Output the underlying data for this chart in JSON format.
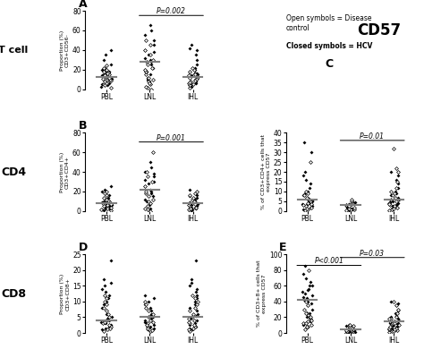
{
  "background_color": "#ffffff",
  "legend_text_1": "Open symbols = Disease\ncontrol",
  "legend_text_2": "Closed symbols = HCV",
  "panel_A": {
    "label": "A",
    "side_label": "T cell",
    "title_p": "P=0.002",
    "ylabel": "Proportion (%)\nCD3+CD56-",
    "xlabel_ticks": [
      "PBL",
      "LNL",
      "IHL"
    ],
    "ylim": [
      0,
      80
    ],
    "yticks": [
      0,
      20,
      40,
      60,
      80
    ],
    "median_lines": [
      13,
      28,
      13
    ],
    "PBL_closed": [
      5,
      6,
      8,
      10,
      11,
      12,
      13,
      14,
      15,
      16,
      17,
      18,
      19,
      20,
      22,
      25,
      30,
      35,
      40,
      3,
      4
    ],
    "PBL_open": [
      2,
      5,
      7,
      9,
      11,
      13,
      15,
      17,
      20,
      22,
      24,
      4,
      6,
      8,
      10,
      12,
      14,
      16,
      18
    ],
    "LNL_closed": [
      10,
      15,
      18,
      20,
      22,
      25,
      28,
      30,
      32,
      35,
      38,
      40,
      45,
      50,
      55,
      60,
      65,
      5,
      8,
      12
    ],
    "LNL_open": [
      2,
      5,
      8,
      10,
      12,
      15,
      18,
      20,
      22,
      25,
      28,
      30,
      35,
      40,
      45,
      50,
      0,
      3,
      6
    ],
    "IHL_closed": [
      5,
      8,
      10,
      12,
      14,
      15,
      16,
      18,
      20,
      22,
      25,
      30,
      35,
      40,
      42,
      45,
      3,
      6
    ],
    "IHL_open": [
      2,
      4,
      6,
      8,
      10,
      12,
      14,
      16,
      18,
      20,
      22,
      5,
      7,
      9,
      11,
      13,
      15
    ]
  },
  "panel_B": {
    "label": "B",
    "side_label": "CD4",
    "title_p": "P=0.001",
    "ylabel": "Proportion (%)\nCD3+CD4+",
    "xlabel_ticks": [
      "PBL",
      "LNL",
      "IHL"
    ],
    "ylim": [
      0,
      80
    ],
    "yticks": [
      0,
      20,
      40,
      60,
      80
    ],
    "median_lines": [
      8,
      22,
      8
    ],
    "PBL_closed": [
      2,
      3,
      4,
      5,
      6,
      7,
      8,
      9,
      10,
      12,
      14,
      16,
      18,
      20,
      22,
      25,
      1,
      3
    ],
    "PBL_open": [
      1,
      2,
      3,
      4,
      5,
      6,
      7,
      8,
      9,
      10,
      11,
      12,
      14,
      16,
      18,
      20
    ],
    "LNL_closed": [
      5,
      8,
      10,
      12,
      15,
      18,
      20,
      22,
      25,
      28,
      30,
      32,
      35,
      38,
      40,
      45,
      50,
      3,
      6
    ],
    "LNL_open": [
      2,
      5,
      8,
      10,
      12,
      15,
      18,
      20,
      25,
      30,
      35,
      40,
      60,
      0,
      3
    ],
    "IHL_closed": [
      2,
      3,
      4,
      5,
      6,
      7,
      8,
      9,
      10,
      12,
      14,
      16,
      18,
      20,
      22,
      1,
      4,
      8,
      15
    ],
    "IHL_open": [
      1,
      2,
      3,
      4,
      5,
      6,
      7,
      8,
      10,
      12,
      14,
      16,
      18,
      20
    ]
  },
  "panel_D": {
    "label": "D",
    "side_label": "CD8",
    "ylabel": "Proportion (%)\nCD3+CD8+",
    "xlabel_ticks": [
      "PBL",
      "LNL",
      "IHL"
    ],
    "ylim": [
      0,
      25
    ],
    "yticks": [
      0,
      5,
      10,
      15,
      20,
      25
    ],
    "median_lines": [
      4,
      5,
      5
    ],
    "PBL_closed": [
      1,
      2,
      3,
      4,
      5,
      6,
      7,
      8,
      9,
      10,
      11,
      12,
      13,
      14,
      15,
      16,
      17,
      1.5,
      2.5,
      3.5,
      4.5,
      23
    ],
    "PBL_open": [
      0.5,
      1,
      2,
      3,
      4,
      5,
      6,
      7,
      8,
      9,
      10,
      11,
      12,
      1.5,
      2.5,
      3.5
    ],
    "LNL_closed": [
      1,
      2,
      3,
      4,
      5,
      6,
      7,
      8,
      9,
      10,
      11,
      12,
      1.5,
      2.5,
      3.5,
      4.5,
      5.5
    ],
    "LNL_open": [
      0.5,
      1,
      2,
      3,
      4,
      5,
      6,
      7,
      8,
      9,
      10,
      0.8,
      1.5,
      2.5,
      3.5
    ],
    "IHL_closed": [
      1,
      2,
      3,
      4,
      5,
      6,
      7,
      8,
      9,
      10,
      11,
      12,
      13,
      14,
      15,
      16,
      17,
      23,
      1.5,
      2.5,
      3.5,
      4.5,
      5.5
    ],
    "IHL_open": [
      0.5,
      1,
      2,
      3,
      4,
      5,
      6,
      7,
      8,
      9,
      10,
      11,
      12,
      1.5,
      2.5,
      3.5,
      4.5
    ]
  },
  "panel_C": {
    "label": "C",
    "cd57_title": "CD57",
    "title_p": "P=0.01",
    "ylabel": "% of CD3+CD4+ cells that\nexpress CD57",
    "xlabel_ticks": [
      "PBL",
      "LNL",
      "IHL"
    ],
    "ylim": [
      0,
      40
    ],
    "yticks": [
      0,
      5,
      10,
      15,
      20,
      25,
      30,
      35,
      40
    ],
    "median_lines": [
      6,
      3,
      6
    ],
    "PBL_closed": [
      1,
      2,
      3,
      4,
      5,
      6,
      7,
      8,
      9,
      10,
      12,
      14,
      16,
      18,
      20,
      30,
      35,
      1.5,
      2.5,
      3.5,
      4.5,
      5.5
    ],
    "PBL_open": [
      0.5,
      1,
      2,
      3,
      4,
      5,
      6,
      7,
      8,
      9,
      10,
      1.5,
      2.5,
      3.5,
      25
    ],
    "LNL_closed": [
      0.5,
      1,
      2,
      3,
      4,
      5,
      0.8,
      1.5,
      2.5,
      3.5,
      4.5
    ],
    "LNL_open": [
      0.5,
      1,
      2,
      3,
      4,
      5,
      6,
      0.8,
      1.5,
      2.5,
      3.5
    ],
    "IHL_closed": [
      1,
      2,
      3,
      4,
      5,
      6,
      7,
      8,
      9,
      10,
      12,
      14,
      16,
      18,
      20,
      1.5,
      2.5,
      3.5,
      4.5,
      5.5
    ],
    "IHL_open": [
      0.5,
      1,
      2,
      3,
      4,
      5,
      6,
      7,
      8,
      9,
      10,
      12,
      15,
      20,
      22,
      32,
      1.5,
      2.5,
      3.5
    ]
  },
  "panel_E": {
    "label": "E",
    "title_p1": "P=0.03",
    "title_p2": "P<0.001",
    "ylabel": "% of CD3+8+ cells that\nexpress CD57",
    "xlabel_ticks": [
      "PBL",
      "LNL",
      "IHL"
    ],
    "ylim": [
      0,
      100
    ],
    "yticks": [
      0,
      20,
      40,
      60,
      80,
      100
    ],
    "median_lines": [
      42,
      5,
      15
    ],
    "PBL_closed": [
      10,
      15,
      20,
      25,
      30,
      35,
      40,
      45,
      50,
      55,
      60,
      65,
      70,
      75,
      85,
      38,
      42,
      44,
      48,
      52,
      56,
      60
    ],
    "PBL_open": [
      5,
      8,
      10,
      12,
      15,
      18,
      20,
      25,
      30,
      35,
      40,
      8,
      12,
      16,
      20,
      25,
      80
    ],
    "LNL_closed": [
      1,
      2,
      3,
      4,
      5,
      6,
      7,
      8,
      9,
      10,
      1.5,
      2.5,
      3.5,
      4.5
    ],
    "LNL_open": [
      0.5,
      1,
      2,
      3,
      4,
      5,
      6,
      7,
      8,
      9,
      10,
      1.5,
      2.5,
      3.5,
      4.5
    ],
    "IHL_closed": [
      5,
      8,
      10,
      12,
      14,
      16,
      18,
      20,
      22,
      25,
      28,
      30,
      35,
      38,
      40,
      6,
      9,
      11,
      13,
      15
    ],
    "IHL_open": [
      1,
      2,
      3,
      4,
      5,
      6,
      8,
      10,
      12,
      15,
      18,
      20,
      25,
      30,
      35,
      40,
      2,
      4,
      6,
      8,
      10,
      12,
      15,
      18
    ]
  }
}
